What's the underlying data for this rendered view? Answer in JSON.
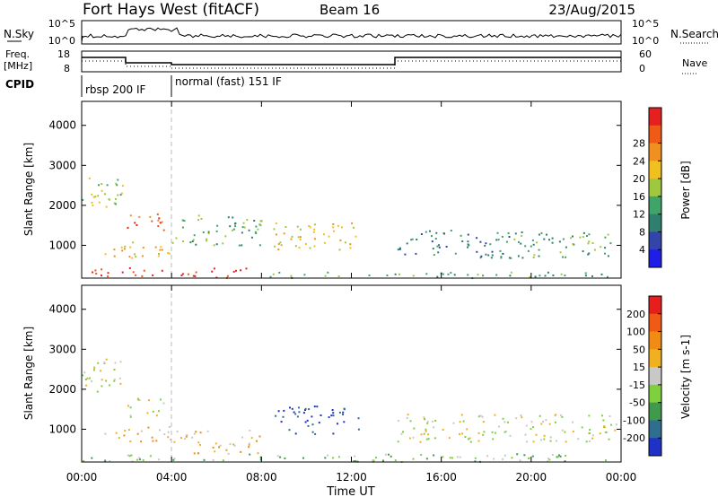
{
  "header": {
    "title": "Fort Hays West (fitACF)",
    "beam": "Beam 16",
    "date": "23/Aug/2015"
  },
  "top_panels": {
    "nsky_label": "N.Sky",
    "nsky_ticks": [
      "10^5",
      "10^0"
    ],
    "nsearch_label": "N.Search",
    "nsearch_ticks": [
      "10^5",
      "10^0"
    ],
    "freq_label_1": "Freq.",
    "freq_label_2": "[MHz]",
    "freq_ticks": [
      "18",
      "8"
    ],
    "nave_label": "Nave",
    "nave_ticks": [
      "60",
      "0"
    ],
    "cpid_label": "CPID",
    "cpid_segments": [
      {
        "label": "rbsp 200 IF",
        "start_hour": 0,
        "end_hour": 4
      },
      {
        "label": "normal (fast) 151 IF",
        "start_hour": 4,
        "end_hour": 24
      }
    ]
  },
  "chart_data": [
    {
      "type": "heatmap",
      "ylabel": "Slant Range [km]",
      "xlabel": "Time UT",
      "x_ticks": [
        "00:00",
        "04:00",
        "08:00",
        "12:00",
        "16:00",
        "20:00",
        "00:00"
      ],
      "x_hours": [
        0,
        4,
        8,
        12,
        16,
        20,
        24
      ],
      "y_ticks": [
        1000,
        2000,
        3000,
        4000
      ],
      "ylim": [
        180,
        4600
      ],
      "colorbar": {
        "label": "Power [dB]",
        "ticks": [
          "4",
          "8",
          "12",
          "16",
          "20",
          "24",
          "28"
        ],
        "colors": [
          "#1e1ee6",
          "#3344aa",
          "#2e7f6e",
          "#3fa36a",
          "#9fc83e",
          "#f0c020",
          "#f09020",
          "#f05a14",
          "#e62020"
        ]
      },
      "echo_regions": [
        {
          "t0": 0.0,
          "t1": 1.8,
          "r0": 1900,
          "r1": 2800,
          "level": 4
        },
        {
          "t0": 2.0,
          "t1": 3.7,
          "r0": 1300,
          "r1": 1800,
          "level": 7
        },
        {
          "t0": 1.0,
          "t1": 4.5,
          "r0": 700,
          "r1": 1100,
          "level": 5
        },
        {
          "t0": 4.0,
          "t1": 8.0,
          "r0": 1000,
          "r1": 1800,
          "level": 3
        },
        {
          "t0": 8.5,
          "t1": 12.3,
          "r0": 900,
          "r1": 1600,
          "level": 5
        },
        {
          "t0": 14.0,
          "t1": 19.0,
          "r0": 700,
          "r1": 1400,
          "level": 2
        },
        {
          "t0": 19.0,
          "t1": 23.8,
          "r0": 700,
          "r1": 1400,
          "level": 3
        },
        {
          "t0": 0.3,
          "t1": 7.5,
          "r0": 200,
          "r1": 450,
          "level": 8
        },
        {
          "t0": 7.5,
          "t1": 23.8,
          "r0": 200,
          "r1": 350,
          "level": 3
        }
      ]
    },
    {
      "type": "heatmap",
      "ylabel": "Slant Range [km]",
      "xlabel": "Time UT",
      "x_ticks": [
        "00:00",
        "04:00",
        "08:00",
        "12:00",
        "16:00",
        "20:00",
        "00:00"
      ],
      "x_hours": [
        0,
        4,
        8,
        12,
        16,
        20,
        24
      ],
      "y_ticks": [
        1000,
        2000,
        3000,
        4000
      ],
      "ylim": [
        180,
        4600
      ],
      "colorbar": {
        "label": "Velocity [m s-1]",
        "ticks": [
          "200",
          "100",
          "50",
          "15",
          "-15",
          "-50",
          "-100",
          "-200"
        ],
        "colors": [
          "#1e32c8",
          "#2e6e8e",
          "#3f9a4e",
          "#7fd03e",
          "#c8c8c8",
          "#f0b020",
          "#f08c14",
          "#f05a14",
          "#e61e1e"
        ]
      },
      "echo_regions": [
        {
          "t0": 0.0,
          "t1": 1.8,
          "r0": 1900,
          "r1": 2800,
          "level": 4
        },
        {
          "t0": 2.0,
          "t1": 3.7,
          "r0": 1300,
          "r1": 1800,
          "level": 4
        },
        {
          "t0": 1.0,
          "t1": 4.5,
          "r0": 700,
          "r1": 1100,
          "level": 5
        },
        {
          "t0": 4.5,
          "t1": 8.0,
          "r0": 400,
          "r1": 1000,
          "level": 5
        },
        {
          "t0": 8.5,
          "t1": 12.3,
          "r0": 900,
          "r1": 1600,
          "level": 0
        },
        {
          "t0": 14.0,
          "t1": 23.8,
          "r0": 700,
          "r1": 1400,
          "level": 4
        },
        {
          "t0": 0.0,
          "t1": 23.8,
          "r0": 200,
          "r1": 400,
          "level": 3
        }
      ]
    }
  ]
}
